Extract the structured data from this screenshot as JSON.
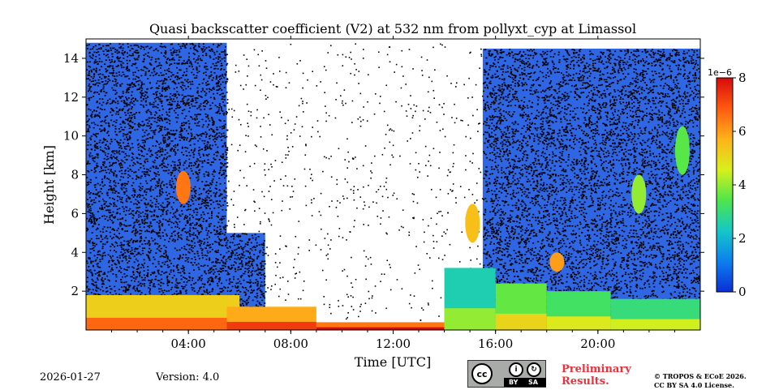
{
  "chart_data": {
    "type": "heatmap",
    "title": "Quasi backscatter coefficient (V2) at 532 nm from pollyxt_cyp at Limassol",
    "xlabel": "Time [UTC]",
    "ylabel": "Height [km]",
    "xlim": [
      0,
      24
    ],
    "ylim": [
      0,
      15
    ],
    "x_ticks": [
      {
        "value": 4,
        "label": "04:00"
      },
      {
        "value": 8,
        "label": "08:00"
      },
      {
        "value": 12,
        "label": "12:00"
      },
      {
        "value": 16,
        "label": "16:00"
      },
      {
        "value": 20,
        "label": "20:00"
      }
    ],
    "y_ticks": [
      {
        "value": 2,
        "label": "2"
      },
      {
        "value": 4,
        "label": "4"
      },
      {
        "value": 6,
        "label": "6"
      },
      {
        "value": 8,
        "label": "8"
      },
      {
        "value": 10,
        "label": "10"
      },
      {
        "value": 12,
        "label": "12"
      },
      {
        "value": 14,
        "label": "14"
      }
    ],
    "colorbar": {
      "range": [
        0,
        8
      ],
      "exponent_label": "1e−6",
      "ticks": [
        {
          "value": 0,
          "label": "0"
        },
        {
          "value": 2,
          "label": "2"
        },
        {
          "value": 4,
          "label": "4"
        },
        {
          "value": 6,
          "label": "6"
        },
        {
          "value": 8,
          "label": "8"
        }
      ],
      "colormap": [
        "#0a2fd4",
        "#0c7ff0",
        "#14c8c8",
        "#4ee64a",
        "#d8f01c",
        "#ffb21a",
        "#ff5a10",
        "#d80a0a"
      ]
    },
    "features": {
      "aerosol_layer": [
        {
          "t0": 0,
          "t1": 6,
          "top": 1.8,
          "value": 5.2
        },
        {
          "t0": 5.5,
          "t1": 9,
          "top": 1.2,
          "value": 5.8
        },
        {
          "t0": 9,
          "t1": 14,
          "top": 0.4,
          "value": 6.5
        },
        {
          "t0": 14,
          "t1": 16,
          "top": 3.2,
          "value": 2.5
        },
        {
          "t0": 16,
          "t1": 18,
          "top": 2.4,
          "value": 3.6
        },
        {
          "t0": 18,
          "t1": 20.5,
          "top": 2.0,
          "value": 3.2
        },
        {
          "t0": 20.5,
          "t1": 24,
          "top": 1.6,
          "value": 3.0
        }
      ],
      "night_noise": [
        {
          "t0": 0,
          "t1": 5.5,
          "top": 14.8
        },
        {
          "t0": 5.5,
          "t1": 7,
          "top": 5.0
        },
        {
          "t0": 15.5,
          "t1": 24,
          "top": 14.5
        }
      ],
      "clouds": [
        {
          "time": 3.8,
          "base_km": 6.5,
          "top_km": 8.2,
          "value": 6.5
        },
        {
          "time": 15.1,
          "base_km": 4.5,
          "top_km": 6.5,
          "value": 5.5
        },
        {
          "time": 18.4,
          "base_km": 3.0,
          "top_km": 4.0,
          "value": 6.0
        },
        {
          "time": 21.6,
          "base_km": 6.0,
          "top_km": 8.0,
          "value": 4.0
        },
        {
          "time": 23.3,
          "base_km": 8.0,
          "top_km": 10.5,
          "value": 3.5
        }
      ]
    }
  },
  "footer": {
    "date": "2026-01-27",
    "version": "Version: 4.0",
    "cc_badge": {
      "cc": "cc",
      "by_icon": "i",
      "sa_icon": "↻",
      "by_text": "BY",
      "sa_text": "SA"
    },
    "preliminary_line1": "Preliminary",
    "preliminary_line2": "Results.",
    "license_line1": "© TROPOS & ECoE 2026.",
    "license_line2": "CC BY SA 4.0 License."
  }
}
